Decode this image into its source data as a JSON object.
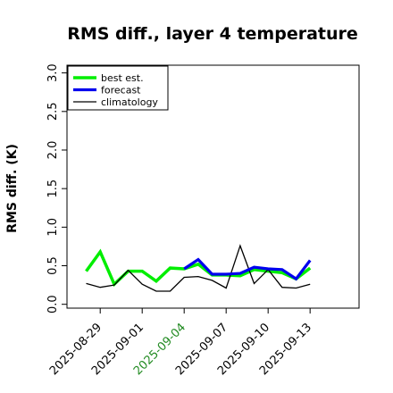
{
  "chart_data": {
    "type": "line",
    "title": "RMS diff., layer 4 temperature",
    "ylabel": "RMS diff. (K)",
    "xlabel": "",
    "ylim": [
      -0.05,
      3.1
    ],
    "xlim": [
      "2025-08-26T15:00",
      "2025-09-16T12:00"
    ],
    "yticks": [
      0.0,
      0.5,
      1.0,
      1.5,
      2.0,
      2.5,
      3.0
    ],
    "ytick_labels": [
      "0.0",
      "0.5",
      "1.0",
      "1.5",
      "2.0",
      "2.5",
      "3.0"
    ],
    "xticks": [
      "2025-08-29",
      "2025-09-01",
      "2025-09-04",
      "2025-09-07",
      "2025-09-10",
      "2025-09-13"
    ],
    "xtick_labels": [
      {
        "text": "2025-08-29",
        "color": "#000000"
      },
      {
        "text": "2025-09-01",
        "color": "#000000"
      },
      {
        "text": "2025-09-04",
        "color": "#228B22"
      },
      {
        "text": "2025-09-07",
        "color": "#000000"
      },
      {
        "text": "2025-09-10",
        "color": "#000000"
      },
      {
        "text": "2025-09-13",
        "color": "#000000"
      }
    ],
    "grid": false,
    "legend_position": "top-left",
    "x": [
      "2025-08-28",
      "2025-08-29",
      "2025-08-30",
      "2025-08-31",
      "2025-09-01",
      "2025-09-02",
      "2025-09-03",
      "2025-09-04",
      "2025-09-05",
      "2025-09-06",
      "2025-09-07",
      "2025-09-08",
      "2025-09-09",
      "2025-09-10",
      "2025-09-11",
      "2025-09-12",
      "2025-09-13"
    ],
    "series": [
      {
        "name": "best est.",
        "color": "#00ee00",
        "values": [
          0.43,
          0.68,
          0.26,
          0.43,
          0.43,
          0.3,
          0.47,
          0.46,
          0.52,
          0.38,
          0.38,
          0.37,
          0.45,
          0.43,
          0.41,
          0.33,
          0.47
        ]
      },
      {
        "name": "forecast",
        "color": "#0000ee",
        "values": [
          null,
          null,
          null,
          null,
          null,
          null,
          null,
          0.46,
          0.58,
          0.39,
          0.39,
          0.4,
          0.48,
          0.46,
          0.45,
          0.33,
          0.57
        ]
      },
      {
        "name": "climatology",
        "color": "#000000",
        "values": [
          0.27,
          0.22,
          0.25,
          0.44,
          0.26,
          0.17,
          0.17,
          0.35,
          0.36,
          0.31,
          0.21,
          0.76,
          0.27,
          0.45,
          0.22,
          0.21,
          0.26
        ]
      }
    ]
  }
}
